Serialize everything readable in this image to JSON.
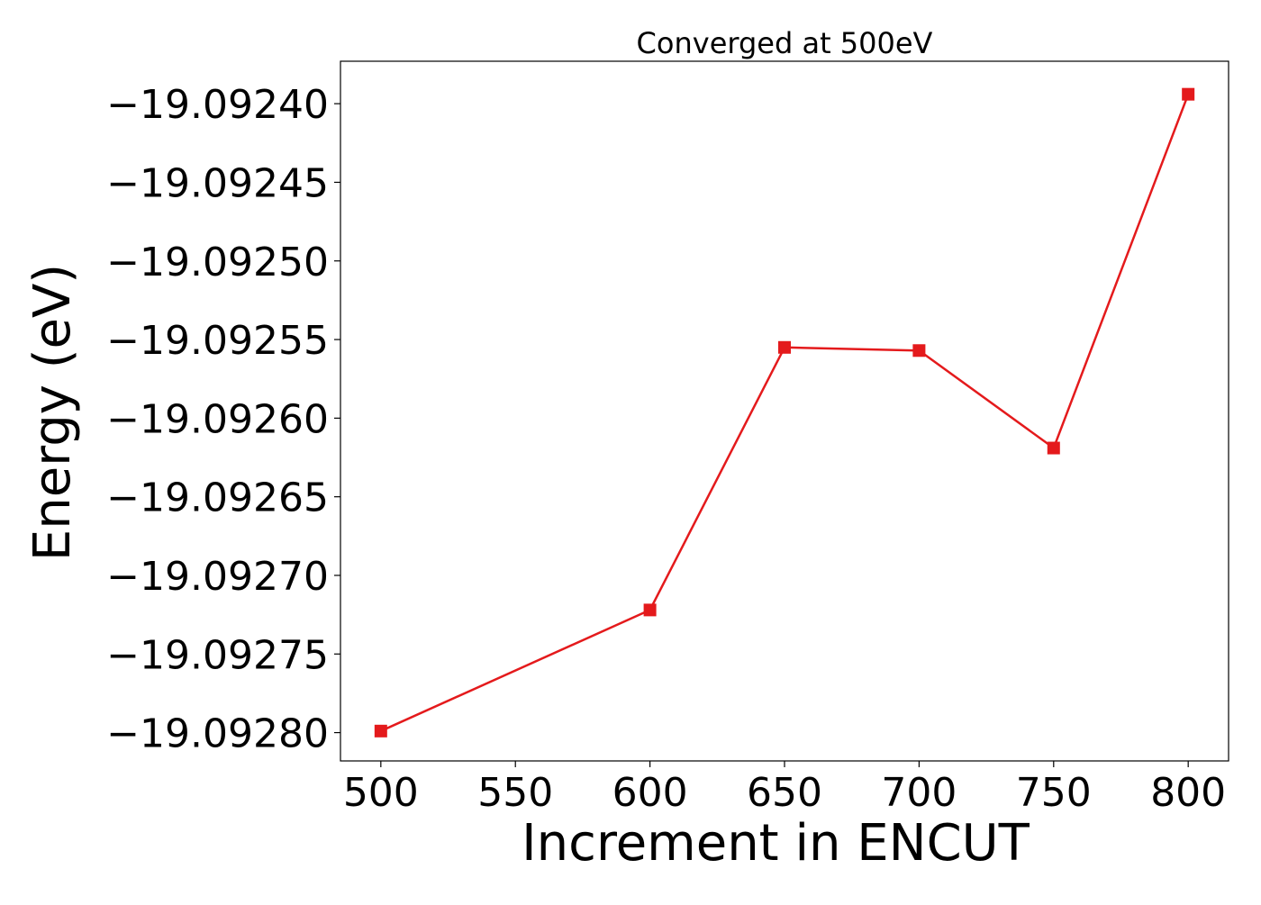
{
  "chart_data": {
    "type": "line",
    "title": "Converged at 500eV",
    "xlabel": "Increment in ENCUT",
    "ylabel": "Energy (eV)",
    "xlim": [
      485,
      815
    ],
    "ylim": [
      -19.092818,
      -19.092373
    ],
    "x_ticks": [
      500,
      550,
      600,
      650,
      700,
      750,
      800
    ],
    "x_tick_labels": [
      "500",
      "550",
      "600",
      "650",
      "700",
      "750",
      "800"
    ],
    "y_ticks": [
      -19.0924,
      -19.09245,
      -19.0925,
      -19.09255,
      -19.0926,
      -19.09265,
      -19.0927,
      -19.09275,
      -19.0928
    ],
    "y_tick_labels": [
      "−19.09240",
      "−19.09245",
      "−19.09250",
      "−19.09255",
      "−19.09260",
      "−19.09265",
      "−19.09270",
      "−19.09275",
      "−19.09280"
    ],
    "grid": false,
    "legend": "none",
    "series": [
      {
        "color": "#e41a1c",
        "marker": "square",
        "x": [
          500,
          600,
          650,
          700,
          750,
          800
        ],
        "y": [
          -19.092799,
          -19.092722,
          -19.092555,
          -19.092557,
          -19.092619,
          -19.092394
        ]
      }
    ]
  }
}
